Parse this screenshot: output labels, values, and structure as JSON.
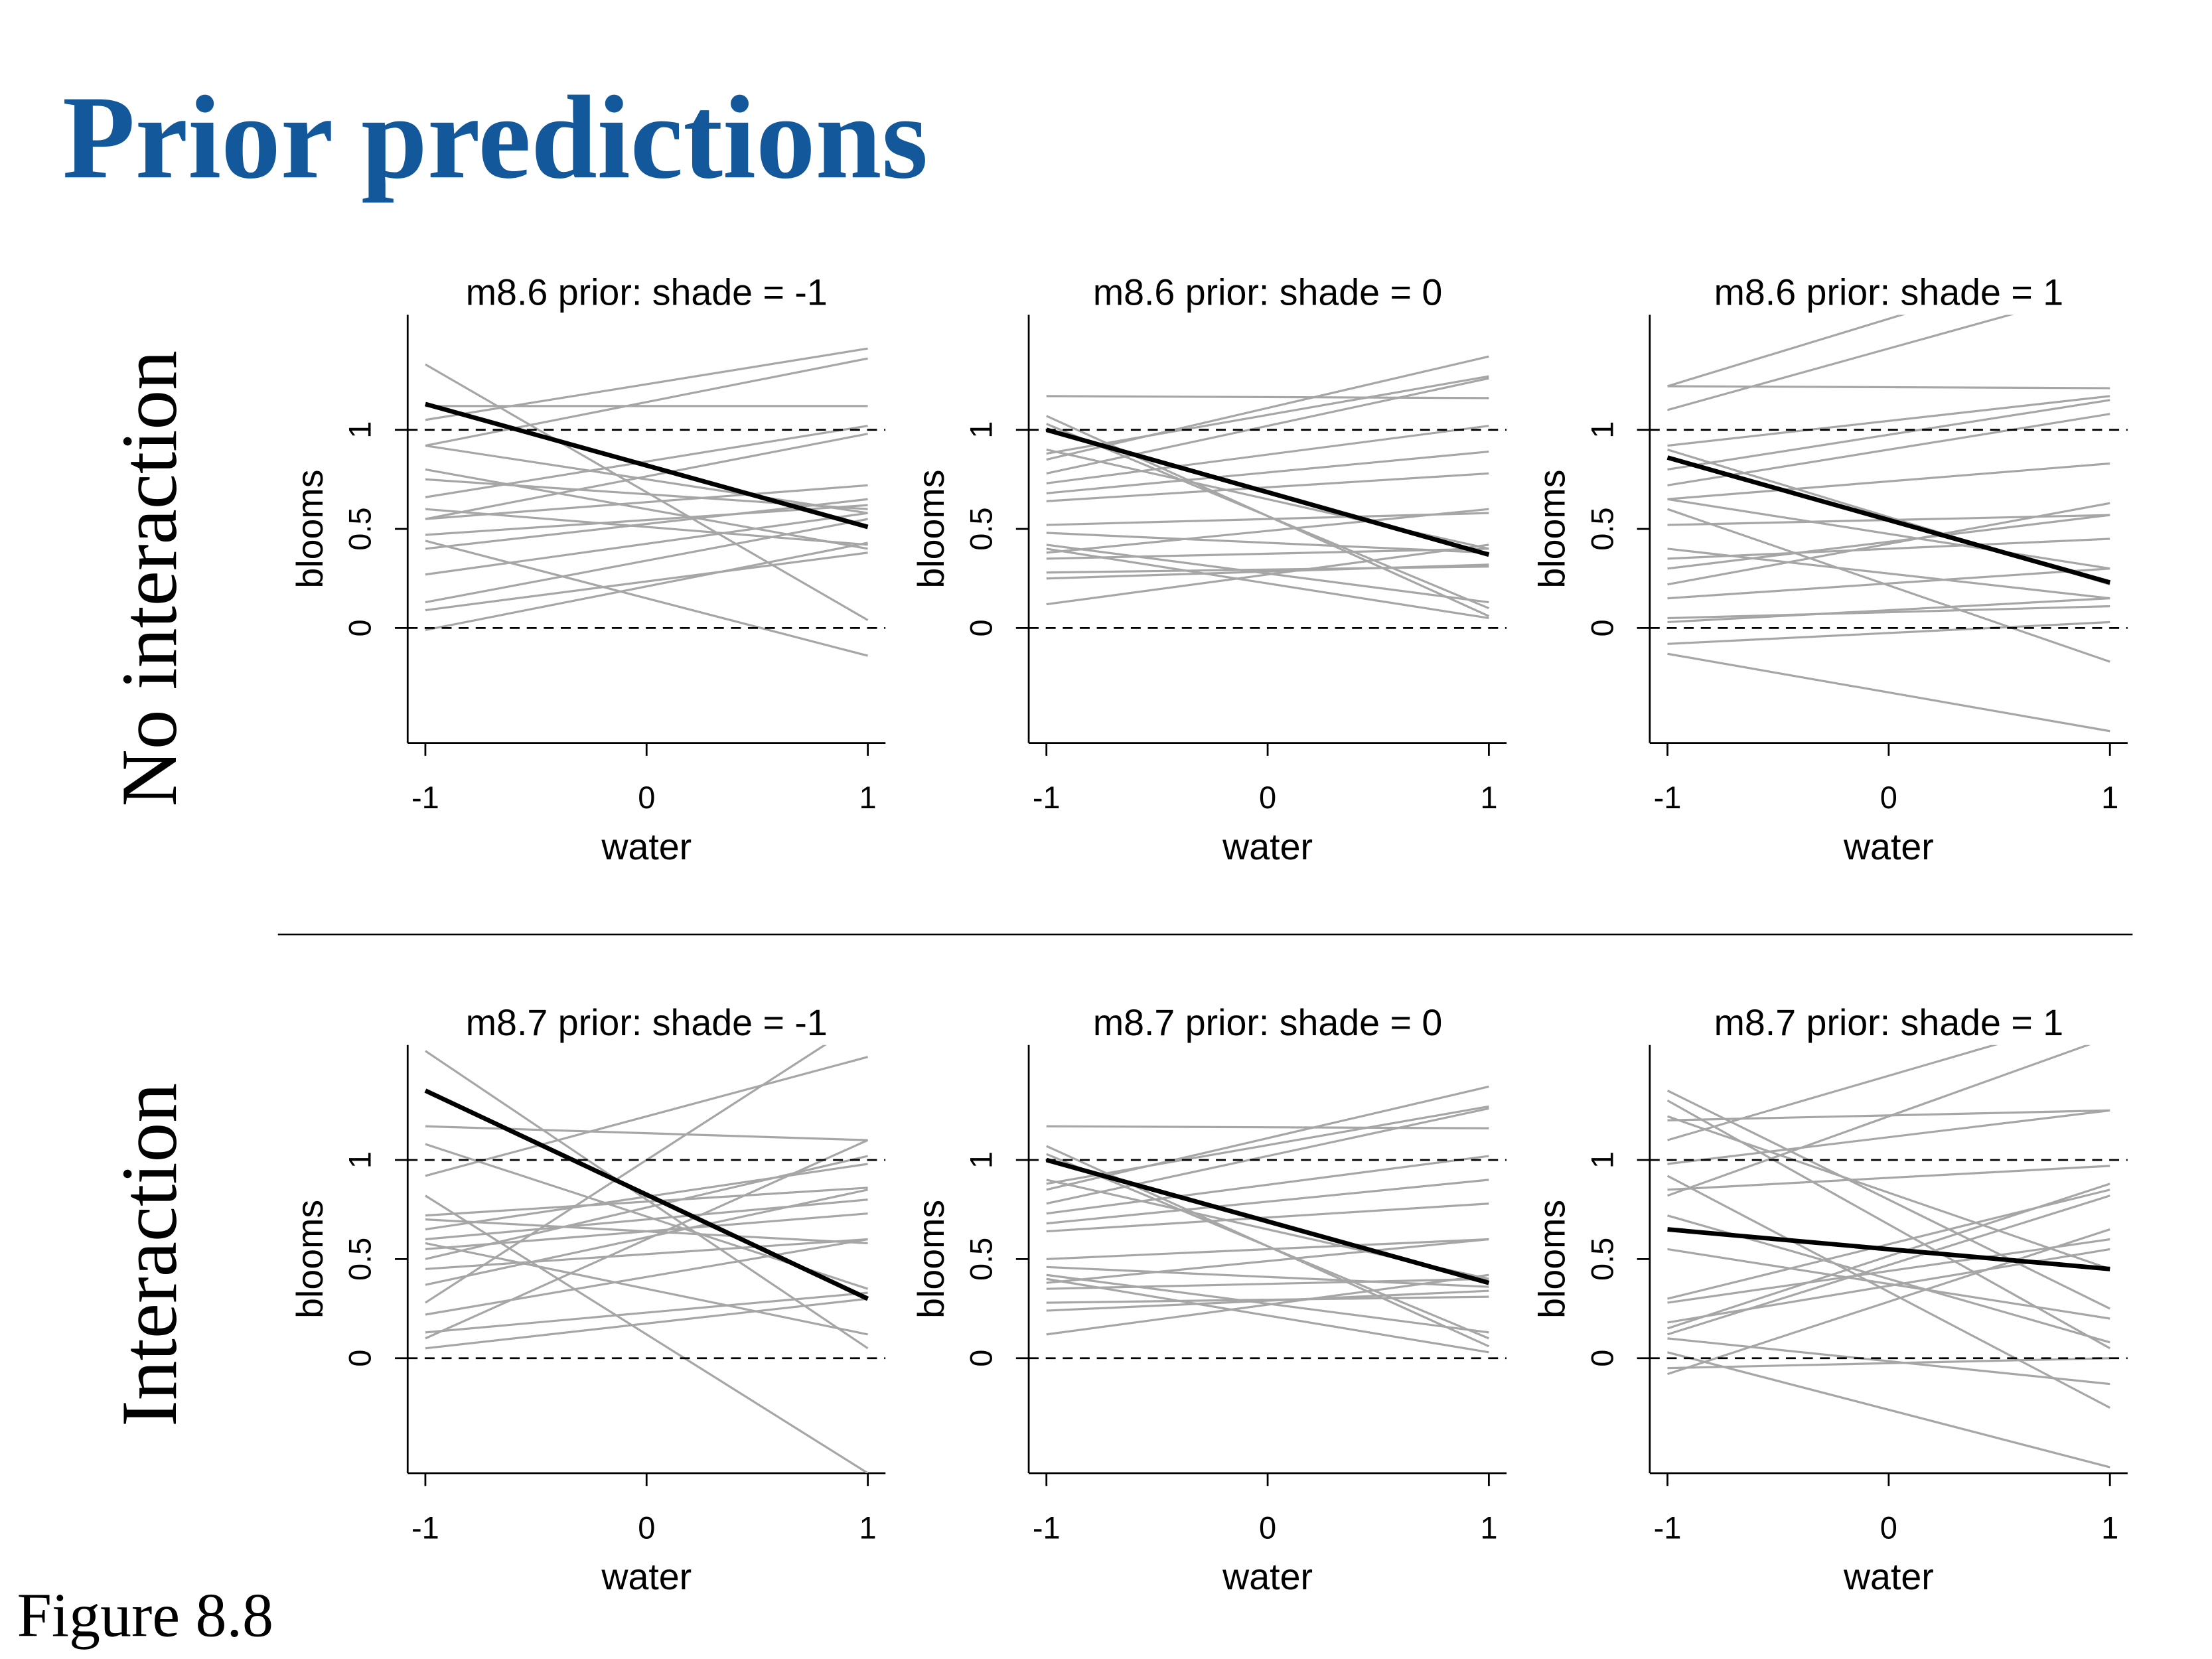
{
  "title": "Prior predictions",
  "row_labels": [
    "No interaction",
    "Interaction"
  ],
  "caption": "Figure 8.8",
  "chart_data": [
    {
      "type": "line",
      "title": "m8.6 prior: shade = -1",
      "xlabel": "water",
      "ylabel": "blooms",
      "x": [
        -1,
        1
      ],
      "xlim": [
        -1.08,
        1.08
      ],
      "ylim": [
        -0.58,
        1.58
      ],
      "xticks": [
        -1,
        0,
        1
      ],
      "yticks": [
        0,
        0.5,
        1
      ],
      "reference_lines": [
        0,
        1
      ],
      "series": [
        {
          "color": "#a6a6a6",
          "values": [
            1.33,
            0.04
          ]
        },
        {
          "color": "#a6a6a6",
          "values": [
            1.05,
            1.41
          ]
        },
        {
          "color": "#a6a6a6",
          "values": [
            0.92,
            1.36
          ]
        },
        {
          "color": "#a6a6a6",
          "values": [
            1.12,
            1.12
          ]
        },
        {
          "color": "#a6a6a6",
          "values": [
            0.92,
            0.58
          ]
        },
        {
          "color": "#a6a6a6",
          "values": [
            0.8,
            0.4
          ]
        },
        {
          "color": "#a6a6a6",
          "values": [
            0.75,
            0.6
          ]
        },
        {
          "color": "#a6a6a6",
          "values": [
            0.66,
            1.02
          ]
        },
        {
          "color": "#a6a6a6",
          "values": [
            0.55,
            0.98
          ]
        },
        {
          "color": "#a6a6a6",
          "values": [
            0.55,
            0.72
          ]
        },
        {
          "color": "#a6a6a6",
          "values": [
            0.47,
            0.62
          ]
        },
        {
          "color": "#a6a6a6",
          "values": [
            0.4,
            0.65
          ]
        },
        {
          "color": "#a6a6a6",
          "values": [
            0.27,
            0.58
          ]
        },
        {
          "color": "#a6a6a6",
          "values": [
            0.44,
            -0.14
          ]
        },
        {
          "color": "#a6a6a6",
          "values": [
            0.13,
            0.55
          ]
        },
        {
          "color": "#a6a6a6",
          "values": [
            0.09,
            0.38
          ]
        },
        {
          "color": "#a6a6a6",
          "values": [
            -0.01,
            0.43
          ]
        },
        {
          "color": "#a6a6a6",
          "values": [
            0.6,
            0.42
          ]
        },
        {
          "color": "#000000",
          "values": [
            1.13,
            0.51
          ]
        }
      ]
    },
    {
      "type": "line",
      "title": "m8.6 prior: shade = 0",
      "xlabel": "water",
      "ylabel": "blooms",
      "x": [
        -1,
        1
      ],
      "xlim": [
        -1.08,
        1.08
      ],
      "ylim": [
        -0.58,
        1.58
      ],
      "xticks": [
        -1,
        0,
        1
      ],
      "yticks": [
        0,
        0.5,
        1
      ],
      "reference_lines": [
        0,
        1
      ],
      "series": [
        {
          "color": "#a6a6a6",
          "values": [
            1.17,
            1.16
          ]
        },
        {
          "color": "#a6a6a6",
          "values": [
            1.07,
            0.06
          ]
        },
        {
          "color": "#a6a6a6",
          "values": [
            1.03,
            0.1
          ]
        },
        {
          "color": "#a6a6a6",
          "values": [
            0.88,
            1.27
          ]
        },
        {
          "color": "#a6a6a6",
          "values": [
            0.85,
            1.37
          ]
        },
        {
          "color": "#a6a6a6",
          "values": [
            0.78,
            1.26
          ]
        },
        {
          "color": "#a6a6a6",
          "values": [
            0.9,
            0.4
          ]
        },
        {
          "color": "#a6a6a6",
          "values": [
            0.73,
            1.02
          ]
        },
        {
          "color": "#a6a6a6",
          "values": [
            0.68,
            0.89
          ]
        },
        {
          "color": "#a6a6a6",
          "values": [
            0.64,
            0.78
          ]
        },
        {
          "color": "#a6a6a6",
          "values": [
            0.52,
            0.58
          ]
        },
        {
          "color": "#a6a6a6",
          "values": [
            0.48,
            0.38
          ]
        },
        {
          "color": "#a6a6a6",
          "values": [
            0.42,
            0.13
          ]
        },
        {
          "color": "#a6a6a6",
          "values": [
            0.38,
            0.6
          ]
        },
        {
          "color": "#a6a6a6",
          "values": [
            0.35,
            0.4
          ]
        },
        {
          "color": "#a6a6a6",
          "values": [
            0.28,
            0.31
          ]
        },
        {
          "color": "#a6a6a6",
          "values": [
            0.25,
            0.32
          ]
        },
        {
          "color": "#a6a6a6",
          "values": [
            0.12,
            0.42
          ]
        },
        {
          "color": "#a6a6a6",
          "values": [
            0.4,
            0.05
          ]
        },
        {
          "color": "#000000",
          "values": [
            1.0,
            0.37
          ]
        }
      ]
    },
    {
      "type": "line",
      "title": "m8.6 prior: shade = 1",
      "xlabel": "water",
      "ylabel": "blooms",
      "x": [
        -1,
        1
      ],
      "xlim": [
        -1.08,
        1.08
      ],
      "ylim": [
        -0.58,
        1.58
      ],
      "xticks": [
        -1,
        0,
        1
      ],
      "yticks": [
        0,
        0.5,
        1
      ],
      "reference_lines": [
        0,
        1
      ],
      "series": [
        {
          "color": "#a6a6a6",
          "values": [
            1.22,
            1.21
          ]
        },
        {
          "color": "#a6a6a6",
          "values": [
            1.1,
            1.72
          ]
        },
        {
          "color": "#a6a6a6",
          "values": [
            1.22,
            1.9
          ]
        },
        {
          "color": "#a6a6a6",
          "values": [
            0.92,
            1.17
          ]
        },
        {
          "color": "#a6a6a6",
          "values": [
            0.9,
            0.22
          ]
        },
        {
          "color": "#a6a6a6",
          "values": [
            0.8,
            1.15
          ]
        },
        {
          "color": "#a6a6a6",
          "values": [
            0.72,
            1.08
          ]
        },
        {
          "color": "#a6a6a6",
          "values": [
            0.65,
            0.83
          ]
        },
        {
          "color": "#a6a6a6",
          "values": [
            0.65,
            0.3
          ]
        },
        {
          "color": "#a6a6a6",
          "values": [
            0.52,
            0.57
          ]
        },
        {
          "color": "#a6a6a6",
          "values": [
            0.4,
            0.15
          ]
        },
        {
          "color": "#a6a6a6",
          "values": [
            0.35,
            0.45
          ]
        },
        {
          "color": "#a6a6a6",
          "values": [
            0.3,
            0.57
          ]
        },
        {
          "color": "#a6a6a6",
          "values": [
            0.22,
            0.63
          ]
        },
        {
          "color": "#a6a6a6",
          "values": [
            0.15,
            0.3
          ]
        },
        {
          "color": "#a6a6a6",
          "values": [
            0.05,
            0.11
          ]
        },
        {
          "color": "#a6a6a6",
          "values": [
            -0.08,
            0.03
          ]
        },
        {
          "color": "#a6a6a6",
          "values": [
            -0.13,
            -0.52
          ]
        },
        {
          "color": "#a6a6a6",
          "values": [
            0.6,
            -0.17
          ]
        },
        {
          "color": "#a6a6a6",
          "values": [
            0.03,
            0.15
          ]
        },
        {
          "color": "#000000",
          "values": [
            0.86,
            0.23
          ]
        }
      ]
    },
    {
      "type": "line",
      "title": "m8.7 prior: shade = -1",
      "xlabel": "water",
      "ylabel": "blooms",
      "x": [
        -1,
        1
      ],
      "xlim": [
        -1.08,
        1.08
      ],
      "ylim": [
        -0.58,
        1.58
      ],
      "xticks": [
        -1,
        0,
        1
      ],
      "yticks": [
        0,
        0.5,
        1
      ],
      "reference_lines": [
        0,
        1
      ],
      "series": [
        {
          "color": "#a6a6a6",
          "values": [
            1.55,
            0.05
          ]
        },
        {
          "color": "#a6a6a6",
          "values": [
            1.17,
            1.1
          ]
        },
        {
          "color": "#a6a6a6",
          "values": [
            1.08,
            0.35
          ]
        },
        {
          "color": "#a6a6a6",
          "values": [
            0.92,
            1.52
          ]
        },
        {
          "color": "#a6a6a6",
          "values": [
            0.82,
            -0.58
          ]
        },
        {
          "color": "#a6a6a6",
          "values": [
            0.72,
            0.86
          ]
        },
        {
          "color": "#a6a6a6",
          "values": [
            0.7,
            0.58
          ]
        },
        {
          "color": "#a6a6a6",
          "values": [
            0.6,
            0.8
          ]
        },
        {
          "color": "#a6a6a6",
          "values": [
            0.55,
            0.73
          ]
        },
        {
          "color": "#a6a6a6",
          "values": [
            0.5,
            1.02
          ]
        },
        {
          "color": "#a6a6a6",
          "values": [
            0.45,
            0.6
          ]
        },
        {
          "color": "#a6a6a6",
          "values": [
            0.37,
            0.85
          ]
        },
        {
          "color": "#a6a6a6",
          "values": [
            0.28,
            1.72
          ]
        },
        {
          "color": "#a6a6a6",
          "values": [
            0.22,
            0.6
          ]
        },
        {
          "color": "#a6a6a6",
          "values": [
            0.13,
            0.33
          ]
        },
        {
          "color": "#a6a6a6",
          "values": [
            0.1,
            1.1
          ]
        },
        {
          "color": "#a6a6a6",
          "values": [
            0.05,
            0.3
          ]
        },
        {
          "color": "#a6a6a6",
          "values": [
            0.58,
            0.12
          ]
        },
        {
          "color": "#a6a6a6",
          "values": [
            0.65,
            0.98
          ]
        },
        {
          "color": "#000000",
          "values": [
            1.35,
            0.3
          ]
        }
      ]
    },
    {
      "type": "line",
      "title": "m8.7 prior: shade = 0",
      "xlabel": "water",
      "ylabel": "blooms",
      "x": [
        -1,
        1
      ],
      "xlim": [
        -1.08,
        1.08
      ],
      "ylim": [
        -0.58,
        1.58
      ],
      "xticks": [
        -1,
        0,
        1
      ],
      "yticks": [
        0,
        0.5,
        1
      ],
      "reference_lines": [
        0,
        1
      ],
      "series": [
        {
          "color": "#a6a6a6",
          "values": [
            1.17,
            1.16
          ]
        },
        {
          "color": "#a6a6a6",
          "values": [
            1.07,
            0.06
          ]
        },
        {
          "color": "#a6a6a6",
          "values": [
            1.03,
            0.1
          ]
        },
        {
          "color": "#a6a6a6",
          "values": [
            0.88,
            1.27
          ]
        },
        {
          "color": "#a6a6a6",
          "values": [
            0.85,
            1.37
          ]
        },
        {
          "color": "#a6a6a6",
          "values": [
            0.78,
            1.26
          ]
        },
        {
          "color": "#a6a6a6",
          "values": [
            0.9,
            0.4
          ]
        },
        {
          "color": "#a6a6a6",
          "values": [
            0.73,
            1.02
          ]
        },
        {
          "color": "#a6a6a6",
          "values": [
            0.68,
            0.9
          ]
        },
        {
          "color": "#a6a6a6",
          "values": [
            0.64,
            0.78
          ]
        },
        {
          "color": "#a6a6a6",
          "values": [
            0.5,
            0.6
          ]
        },
        {
          "color": "#a6a6a6",
          "values": [
            0.46,
            0.36
          ]
        },
        {
          "color": "#a6a6a6",
          "values": [
            0.42,
            0.13
          ]
        },
        {
          "color": "#a6a6a6",
          "values": [
            0.38,
            0.6
          ]
        },
        {
          "color": "#a6a6a6",
          "values": [
            0.35,
            0.4
          ]
        },
        {
          "color": "#a6a6a6",
          "values": [
            0.28,
            0.31
          ]
        },
        {
          "color": "#a6a6a6",
          "values": [
            0.24,
            0.34
          ]
        },
        {
          "color": "#a6a6a6",
          "values": [
            0.12,
            0.42
          ]
        },
        {
          "color": "#a6a6a6",
          "values": [
            0.4,
            0.03
          ]
        },
        {
          "color": "#000000",
          "values": [
            1.0,
            0.38
          ]
        }
      ]
    },
    {
      "type": "line",
      "title": "m8.7 prior: shade = 1",
      "xlabel": "water",
      "ylabel": "blooms",
      "x": [
        -1,
        1
      ],
      "xlim": [
        -1.08,
        1.08
      ],
      "ylim": [
        -0.58,
        1.58
      ],
      "xticks": [
        -1,
        0,
        1
      ],
      "yticks": [
        0,
        0.5,
        1
      ],
      "reference_lines": [
        0,
        1
      ],
      "series": [
        {
          "color": "#a6a6a6",
          "values": [
            1.35,
            0.25
          ]
        },
        {
          "color": "#a6a6a6",
          "values": [
            1.3,
            0.05
          ]
        },
        {
          "color": "#a6a6a6",
          "values": [
            1.22,
            0.45
          ]
        },
        {
          "color": "#a6a6a6",
          "values": [
            1.2,
            1.25
          ]
        },
        {
          "color": "#a6a6a6",
          "values": [
            1.1,
            1.75
          ]
        },
        {
          "color": "#a6a6a6",
          "values": [
            0.98,
            1.25
          ]
        },
        {
          "color": "#a6a6a6",
          "values": [
            0.85,
            0.97
          ]
        },
        {
          "color": "#a6a6a6",
          "values": [
            0.82,
            1.62
          ]
        },
        {
          "color": "#a6a6a6",
          "values": [
            0.72,
            0.08
          ]
        },
        {
          "color": "#a6a6a6",
          "values": [
            0.55,
            0.2
          ]
        },
        {
          "color": "#a6a6a6",
          "values": [
            0.3,
            0.85
          ]
        },
        {
          "color": "#a6a6a6",
          "values": [
            0.28,
            0.6
          ]
        },
        {
          "color": "#a6a6a6",
          "values": [
            0.18,
            0.55
          ]
        },
        {
          "color": "#a6a6a6",
          "values": [
            0.12,
            0.82
          ]
        },
        {
          "color": "#a6a6a6",
          "values": [
            0.1,
            -0.13
          ]
        },
        {
          "color": "#a6a6a6",
          "values": [
            0.03,
            -0.55
          ]
        },
        {
          "color": "#a6a6a6",
          "values": [
            -0.05,
            0.0
          ]
        },
        {
          "color": "#a6a6a6",
          "values": [
            -0.08,
            0.65
          ]
        },
        {
          "color": "#a6a6a6",
          "values": [
            0.92,
            -0.25
          ]
        },
        {
          "color": "#a6a6a6",
          "values": [
            0.15,
            0.88
          ]
        },
        {
          "color": "#000000",
          "values": [
            0.65,
            0.45
          ]
        }
      ]
    }
  ]
}
